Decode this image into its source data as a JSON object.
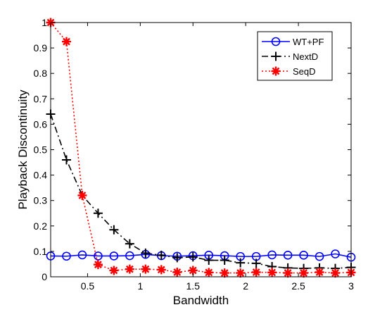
{
  "chart_data": {
    "type": "line",
    "xlabel": "Bandwidth",
    "ylabel": "Playback Discontinuity",
    "xlim": [
      0.15,
      3.0
    ],
    "ylim": [
      0,
      1
    ],
    "xticks": [
      0.5,
      1,
      1.5,
      2,
      2.5,
      3
    ],
    "xtick_labels": [
      "0.5",
      "1",
      "1.5",
      "2",
      "2.5",
      "3"
    ],
    "yticks": [
      0,
      0.1,
      0.2,
      0.3,
      0.4,
      0.5,
      0.6,
      0.7,
      0.8,
      0.9,
      1
    ],
    "ytick_labels": [
      "0",
      "0.1",
      "0.2",
      "0.3",
      "0.4",
      "0.5",
      "0.6",
      "0.7",
      "0.8",
      "0.9",
      "1"
    ],
    "grid": false,
    "legend_position": "top-right",
    "x": [
      0.15,
      0.3,
      0.45,
      0.6,
      0.75,
      0.9,
      1.05,
      1.2,
      1.35,
      1.5,
      1.65,
      1.8,
      1.95,
      2.1,
      2.25,
      2.4,
      2.55,
      2.7,
      2.85,
      3.0
    ],
    "series": [
      {
        "name": "WT+PF",
        "color": "#0000ff",
        "line_style": "solid",
        "marker": "circle",
        "values": [
          0.082,
          0.081,
          0.086,
          0.082,
          0.082,
          0.083,
          0.088,
          0.083,
          0.081,
          0.083,
          0.085,
          0.083,
          0.08,
          0.08,
          0.086,
          0.085,
          0.085,
          0.08,
          0.09,
          0.077
        ]
      },
      {
        "name": "NextD",
        "color": "#000000",
        "line_style": "dashdot",
        "marker": "plus",
        "values": [
          0.64,
          0.46,
          0.32,
          0.25,
          0.185,
          0.13,
          0.093,
          0.085,
          0.075,
          0.078,
          0.065,
          0.065,
          0.055,
          0.053,
          0.04,
          0.035,
          0.033,
          0.035,
          0.033,
          0.037
        ]
      },
      {
        "name": "SeqD",
        "color": "#ff0000",
        "line_style": "dotted",
        "marker": "asterisk",
        "values": [
          1.0,
          0.925,
          0.32,
          0.048,
          0.025,
          0.03,
          0.03,
          0.028,
          0.018,
          0.025,
          0.017,
          0.015,
          0.015,
          0.018,
          0.017,
          0.015,
          0.015,
          0.018,
          0.015,
          0.017
        ]
      }
    ]
  }
}
